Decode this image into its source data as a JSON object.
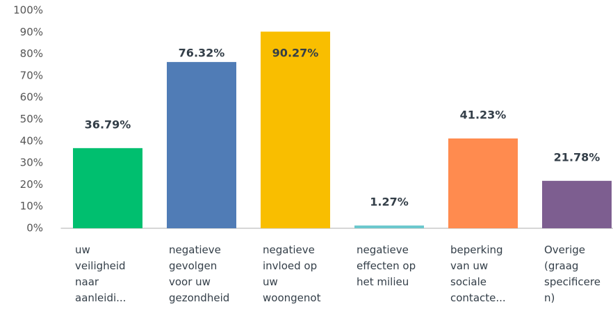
{
  "chart_data": {
    "type": "bar",
    "categories": [
      "uw\nveiligheid\nnaar\naanleidi...",
      "negatieve\ngevolgen\nvoor uw\ngezondheid",
      "negatieve\ninvloed op\nuw\nwoongenot",
      "negatieve\neffecten op\nhet milieu",
      "beperking\nvan uw\nsociale\ncontacte...",
      "Overige\n(graag\nspecificere\nn)"
    ],
    "values": [
      36.79,
      76.32,
      90.27,
      1.27,
      41.23,
      21.78
    ],
    "value_labels": [
      "36.79%",
      "76.32%",
      "90.27%",
      "1.27%",
      "41.23%",
      "21.78%"
    ],
    "colors": [
      "#00bf6f",
      "#507cb6",
      "#f9be00",
      "#6bc8cd",
      "#ff8b4f",
      "#7d5e90"
    ],
    "ylim": [
      0,
      100
    ],
    "yticks": [
      {
        "value": 0,
        "label": "0%"
      },
      {
        "value": 10,
        "label": "10%"
      },
      {
        "value": 20,
        "label": "20%"
      },
      {
        "value": 30,
        "label": "30%"
      },
      {
        "value": 40,
        "label": "40%"
      },
      {
        "value": 50,
        "label": "50%"
      },
      {
        "value": 60,
        "label": "60%"
      },
      {
        "value": 70,
        "label": "70%"
      },
      {
        "value": 80,
        "label": "80%"
      },
      {
        "value": 90,
        "label": "90%"
      },
      {
        "value": 100,
        "label": "100%"
      }
    ],
    "grid": false
  }
}
